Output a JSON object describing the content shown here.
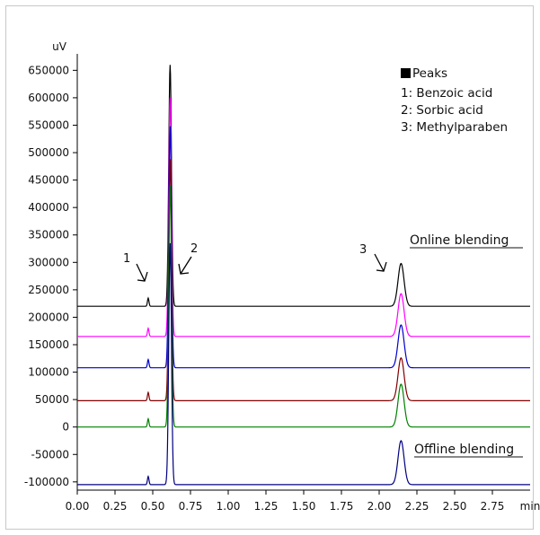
{
  "chart_data": {
    "type": "line",
    "title": "",
    "xlabel": "min",
    "ylabel": "uV",
    "xlim": [
      0.0,
      3.0
    ],
    "ylim": [
      -115000,
      680000
    ],
    "x_ticks": [
      "0.00",
      "0.25",
      "0.50",
      "0.75",
      "1.00",
      "1.25",
      "1.50",
      "1.75",
      "2.00",
      "2.25",
      "2.50",
      "2.75"
    ],
    "y_ticks": [
      "650000",
      "600000",
      "550000",
      "500000",
      "450000",
      "400000",
      "350000",
      "300000",
      "250000",
      "200000",
      "150000",
      "100000",
      "50000",
      "0",
      "-50000",
      "-100000"
    ],
    "grid": false,
    "legend": {
      "title": "Peaks",
      "placement": "top-right",
      "entries": [
        "1: Benzoic acid",
        "2: Sorbic acid",
        "3: Methylparaben"
      ]
    },
    "peak_annotations": [
      {
        "label": "1",
        "x": 0.47
      },
      {
        "label": "2",
        "x": 0.63
      },
      {
        "label": "3",
        "x": 2.14
      }
    ],
    "group_labels": {
      "top": "Online blending",
      "bottom": "Offline blending"
    },
    "series": [
      {
        "color": "#000000",
        "baseline": 220000,
        "peaks": [
          {
            "x": 0.47,
            "height": 15000
          },
          {
            "x": 0.615,
            "height": 440000
          },
          {
            "x": 2.145,
            "height": 78000
          }
        ]
      },
      {
        "color": "#ff00ff",
        "baseline": 165000,
        "peaks": [
          {
            "x": 0.47,
            "height": 15000
          },
          {
            "x": 0.615,
            "height": 435000
          },
          {
            "x": 2.145,
            "height": 78000
          }
        ]
      },
      {
        "color": "#0000cc",
        "baseline": 108000,
        "peaks": [
          {
            "x": 0.47,
            "height": 15000
          },
          {
            "x": 0.615,
            "height": 440000
          },
          {
            "x": 2.145,
            "height": 78000
          }
        ]
      },
      {
        "color": "#800000",
        "baseline": 48000,
        "peaks": [
          {
            "x": 0.47,
            "height": 15000
          },
          {
            "x": 0.615,
            "height": 440000
          },
          {
            "x": 2.145,
            "height": 78000
          }
        ]
      },
      {
        "color": "#008000",
        "baseline": 0,
        "peaks": [
          {
            "x": 0.47,
            "height": 15000
          },
          {
            "x": 0.615,
            "height": 440000
          },
          {
            "x": 2.145,
            "height": 78000
          }
        ]
      },
      {
        "color": "#000080",
        "baseline": -105000,
        "peaks": [
          {
            "x": 0.47,
            "height": 15000
          },
          {
            "x": 0.615,
            "height": 440000
          },
          {
            "x": 2.145,
            "height": 80000
          }
        ]
      }
    ]
  }
}
